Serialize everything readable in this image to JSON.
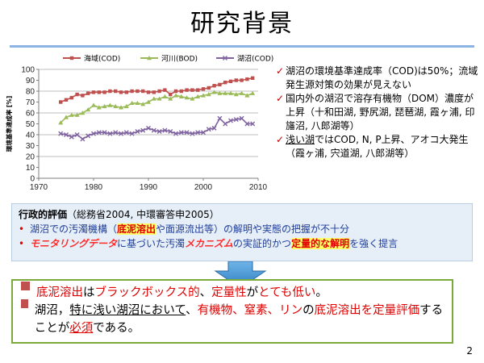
{
  "slide": {
    "title": "研究背景",
    "page_number": "2"
  },
  "chart_data": {
    "type": "line",
    "title": "",
    "xlabel": "",
    "ylabel": "環境基準達成率 [%]",
    "xlim": [
      1970,
      2010
    ],
    "ylim": [
      0,
      100
    ],
    "x_ticks": [
      "1970",
      "1980",
      "1990",
      "2000",
      "2010"
    ],
    "y_ticks": [
      "0",
      "10",
      "20",
      "30",
      "40",
      "50",
      "60",
      "70",
      "80",
      "90",
      "100"
    ],
    "legend_position": "top",
    "x": [
      1974,
      1975,
      1976,
      1977,
      1978,
      1979,
      1980,
      1981,
      1982,
      1983,
      1984,
      1985,
      1986,
      1987,
      1988,
      1989,
      1990,
      1991,
      1992,
      1993,
      1994,
      1995,
      1996,
      1997,
      1998,
      1999,
      2000,
      2001,
      2002,
      2003,
      2004,
      2005,
      2006,
      2007,
      2008,
      2009
    ],
    "series": [
      {
        "name": "海域(COD)",
        "color": "#c0504d",
        "marker": "square",
        "values": [
          70,
          72,
          74,
          77,
          76,
          78,
          79,
          79,
          79,
          80,
          80,
          79,
          79,
          80,
          80,
          80,
          79,
          79,
          80,
          81,
          77,
          80,
          80,
          81,
          81,
          81,
          82,
          83,
          85,
          86,
          88,
          89,
          90,
          90,
          91,
          92
        ]
      },
      {
        "name": "河川(BOD)",
        "color": "#9bbb59",
        "marker": "triangle",
        "values": [
          51,
          56,
          58,
          58,
          60,
          63,
          67,
          65,
          66,
          67,
          66,
          65,
          66,
          69,
          69,
          68,
          70,
          73,
          73,
          75,
          73,
          76,
          75,
          74,
          73,
          75,
          76,
          77,
          79,
          78,
          78,
          78,
          77,
          78,
          76,
          78
        ]
      },
      {
        "name": "湖沼(COD)",
        "color": "#8064a2",
        "marker": "x",
        "values": [
          41,
          40,
          38,
          40,
          36,
          39,
          41,
          42,
          42,
          41,
          42,
          41,
          42,
          41,
          43,
          44,
          46,
          44,
          43,
          44,
          43,
          41,
          42,
          42,
          41,
          42,
          42,
          45,
          46,
          55,
          50,
          53,
          54,
          55,
          50,
          50
        ]
      }
    ]
  },
  "bullets": [
    {
      "check": "✓",
      "parts": [
        {
          "text": "湖沼の環境基準達成率（COD)は50%；流域発生源対策の効果が見えない",
          "u": false
        }
      ]
    },
    {
      "check": "✓",
      "parts": [
        {
          "text": "国内外の湖沼で溶存有機物（DOM）濃度が上昇（十和田湖, 野尻湖, 琵琶湖, 霞ヶ浦, 印旛沼, 八郎湖等）",
          "u": false
        }
      ]
    },
    {
      "check": "✓",
      "parts": [
        {
          "text": "浅い湖",
          "u": true
        },
        {
          "text": "ではCOD, N, P上昇、アオコ大発生（霞ヶ浦, 宍道湖, 八郎湖等）",
          "u": false
        }
      ]
    }
  ],
  "admin": {
    "heading_bold": "行政的評価",
    "heading_rest": "（総務省2004, 中環審答申2005）",
    "line1": [
      "湖沼での汚濁機構（",
      "底泥溶出",
      "や面源流出等）の解明や実態の把握が不十分"
    ],
    "line2": [
      "モニタリングデータ",
      "に基づいた汚濁",
      "メカニズム",
      "の実証的かつ",
      "定量的な解明",
      "を強く提言"
    ]
  },
  "conclusion": {
    "line1": [
      "底泥溶出",
      "は",
      "ブラックボックス的",
      "、",
      "定量性",
      "が",
      "とても低い",
      "。"
    ],
    "line2": [
      "湖沼，",
      "特に浅い湖沼において",
      "、",
      "有機物、窒素、リン",
      "の",
      "底泥溶出を定量評価",
      "することが",
      "必須",
      "である。"
    ]
  },
  "colors": {
    "accent_red": "#e00000",
    "box_bg": "#e6eef8",
    "green_border": "#7aaa3a",
    "rule_blue": "#8db3e2"
  }
}
